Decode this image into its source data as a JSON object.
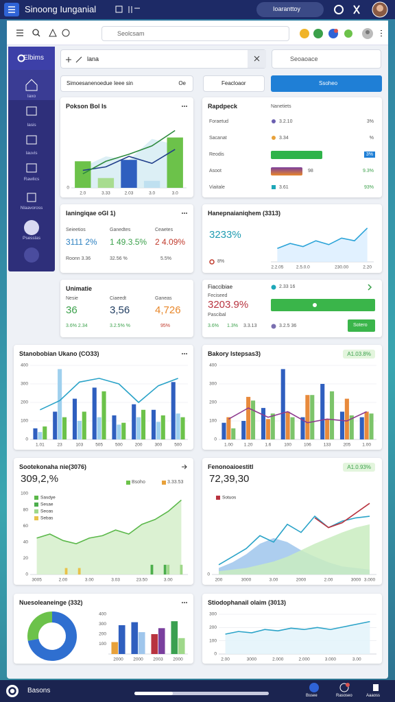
{
  "app_bar": {
    "title": "Sinoong Iunganial",
    "badge": "Ioaranttoy"
  },
  "toolbar": {
    "search_placeholder": "Seolcsam"
  },
  "sidebar": {
    "brand": "Elbims",
    "items": [
      "Iaxo",
      "Iasis",
      "Iauvis",
      "Rawlics",
      "Nlaavoross",
      "Psesslas"
    ]
  },
  "filters": {
    "field": "lana",
    "search_placeholder": "Seoaoace",
    "caption": "Simoesanenoedue Ieee sin",
    "caption_tag": "Oe",
    "dropdown": "Feacloaor",
    "button": "Ssoheo"
  },
  "cards": [
    {
      "title": "Pokson Bol Is",
      "chart": {
        "type": "bar",
        "categories": [
          "2.0",
          "3.33",
          "2.03",
          "3.0",
          "3.0"
        ],
        "ylim": [
          0,
          100
        ],
        "yticks": [
          0
        ],
        "series": [
          {
            "kind": "area",
            "color": "#d6ecf3",
            "values": [
              30,
              45,
              40,
              70,
              62
            ]
          },
          {
            "kind": "bar",
            "colors": [
              "#6cc24a",
              "#a8dc8f",
              "#2f5fbf",
              "#bfe0f0",
              "#6cc24a"
            ],
            "values": [
              38,
              14,
              40,
              10,
              72
            ]
          },
          {
            "kind": "line",
            "color": "#1f3d8a",
            "values": [
              25,
              30,
              45,
              35,
              55
            ]
          },
          {
            "kind": "line",
            "color": "#2d8a3e",
            "values": [
              20,
              38,
              48,
              60,
              82
            ]
          }
        ]
      }
    },
    {
      "title": "Rapdpeck",
      "subtitle": "Nanetiets",
      "rows": [
        {
          "label": "Foraetud",
          "value": "3.2.10",
          "change": "3%"
        },
        {
          "label": "Sacanat",
          "value": "3.34",
          "change": "%"
        },
        {
          "label": "Reodis",
          "progress": 58,
          "change": "3%"
        },
        {
          "label": "Asoot",
          "progress": 35,
          "value": "98",
          "change": "9.3%"
        },
        {
          "label": "Viaitale",
          "value": "3.61",
          "change": "93%"
        }
      ]
    },
    {
      "title": "Ianingiqae oGI 1)",
      "stats": [
        {
          "label": "Seieetios",
          "value": "3111 2%",
          "foot": "Roonn 3.36",
          "color": "#2a7fc0"
        },
        {
          "label": "Ganedtes",
          "value": "1 49.3.5%",
          "foot": "32.56 %",
          "color": "#3aa04a"
        },
        {
          "label": "Ceaetes",
          "value": "2 4.09%",
          "foot": "5.5%",
          "color": "#c0392b"
        }
      ]
    },
    {
      "title": "Unimatie",
      "stats": [
        {
          "label": "Nesie",
          "value": "36",
          "foot": "3.6% 2.34",
          "color": "#3aa04a"
        },
        {
          "label": "Ciaeedt",
          "value": "3,56",
          "foot": "3.2.5% %",
          "color": "#1d3a5f"
        },
        {
          "label": "Ganeas",
          "value": "4,726",
          "foot": "95%",
          "color": "#e8872a"
        }
      ]
    },
    {
      "title": "Hanepnaianiqhem (3313)",
      "value": "3233%",
      "change": "8%",
      "chart": {
        "type": "line",
        "categories": [
          "2.2.05",
          null,
          "2.5.0.0",
          null,
          null,
          "230.00",
          null,
          "2.20"
        ],
        "ylim": [
          0,
          100
        ],
        "series": [
          {
            "kind": "line",
            "color": "#2aa3d8",
            "fill": "#dcefff",
            "values": [
              35,
              48,
              40,
              55,
              45,
              62,
              55,
              88
            ]
          }
        ]
      }
    },
    {
      "label": "Fiaccibiae",
      "value": "2.33 16",
      "sub": "Feciseed",
      "big": "3203.9%",
      "foot": "Pascibal",
      "stats": [
        "3.6%",
        "1.3%",
        "3.3.13"
      ],
      "extra": "3.2.5 36",
      "button": "Sotero"
    },
    {
      "title": "Stanobobian Ukano (CO33)",
      "chart": {
        "type": "bar",
        "categories": [
          "1.01",
          "23",
          "103",
          "505",
          "500",
          "200",
          "300",
          "500"
        ],
        "ylim": [
          0,
          400
        ],
        "yticks": [
          0,
          100,
          200,
          300,
          400
        ],
        "grid": true,
        "series": [
          {
            "color": "#2f5fbf",
            "values": [
              60,
              150,
              220,
              280,
              130,
              190,
              160,
              310
            ]
          },
          {
            "color": "#9fd0ee",
            "values": [
              40,
              380,
              100,
              120,
              80,
              120,
              95,
              140
            ]
          },
          {
            "color": "#6cc24a",
            "values": [
              70,
              120,
              150,
              260,
              90,
              160,
              130,
              120
            ]
          },
          {
            "kind": "line",
            "color": "#2aa3c8",
            "values": [
              160,
              210,
              310,
              330,
              300,
              200,
              290,
              330
            ]
          }
        ]
      }
    },
    {
      "title": "Bakory Istepsas3)",
      "badge": "A1.03.8%",
      "chart": {
        "type": "bar",
        "categories": [
          "1.00",
          "1.20",
          "1.6",
          "100",
          "106",
          "133",
          "205",
          "1.00"
        ],
        "ylim": [
          0,
          400
        ],
        "yticks": [
          0,
          100,
          200,
          300,
          400
        ],
        "grid": true,
        "series": [
          {
            "color": "#2f5fbf",
            "values": [
              90,
              100,
              170,
              380,
              120,
              300,
              150,
              120
            ]
          },
          {
            "color": "#e88a3c",
            "values": [
              120,
              230,
              110,
              150,
              240,
              110,
              220,
              150
            ]
          },
          {
            "color": "#7cc46a",
            "values": [
              60,
              210,
              140,
              120,
              240,
              260,
              130,
              140
            ]
          },
          {
            "kind": "line",
            "color": "#8e3b8f",
            "values": [
              110,
              170,
              120,
              150,
              90,
              110,
              100,
              150
            ]
          }
        ]
      }
    },
    {
      "title": "Sootekonaha nie(3076)",
      "value": "309,2,%",
      "chips": [
        "Bsoho",
        "3.33.53"
      ],
      "chart": {
        "type": "line",
        "categories": [
          "3005",
          null,
          "2.00",
          null,
          "3.00",
          null,
          "3.03",
          null,
          "23.50",
          null,
          "3.00",
          null
        ],
        "ylim": [
          0,
          100
        ],
        "yticks": [
          0,
          20,
          40,
          60,
          80,
          100
        ],
        "series": [
          {
            "name": "Sasdye",
            "kind": "line",
            "color": "#5bb84a",
            "fill": "#d5efca",
            "values": [
              45,
              50,
              42,
              38,
              45,
              48,
              55,
              50,
              62,
              68,
              78,
              92
            ]
          },
          {
            "name": "Sesae",
            "kind": "bar",
            "color": "#4cae4c",
            "values": [
              0,
              0,
              0,
              0,
              0,
              0,
              0,
              0,
              0,
              12,
              12,
              0
            ]
          },
          {
            "name": "Seoas",
            "kind": "bar",
            "color": "#9fd88a",
            "values": [
              0,
              0,
              0,
              0,
              0,
              0,
              0,
              0,
              0,
              0,
              12,
              12
            ]
          },
          {
            "name": "Sebas",
            "kind": "bar",
            "color": "#e8c24a",
            "values": [
              0,
              0,
              8,
              8,
              0,
              0,
              0,
              0,
              0,
              0,
              0,
              0
            ]
          }
        ]
      }
    },
    {
      "title": "Fenonoaioestitl",
      "badge": "A1.0.93%",
      "value": "72,39,30",
      "chart": {
        "type": "line",
        "categories": [
          "200",
          null,
          "3000",
          null,
          "3.00",
          null,
          "2000",
          null,
          "2.00",
          null,
          "3000",
          "3.000"
        ],
        "ylim": [
          0,
          100
        ],
        "yticks": [
          0
        ],
        "series": [
          {
            "kind": "area",
            "color": "#9fc6ec",
            "values": [
              8,
              15,
              25,
              38,
              45,
              40,
              30,
              22,
              15,
              10,
              8,
              6
            ]
          },
          {
            "kind": "area",
            "color": "#c9ecc0",
            "values": [
              4,
              6,
              8,
              12,
              16,
              22,
              30,
              38,
              45,
              52,
              58,
              62
            ]
          },
          {
            "kind": "line",
            "color": "#2aa3c8",
            "values": [
              12,
              22,
              32,
              48,
              40,
              62,
              52,
              72,
              58,
              66,
              70,
              72
            ]
          },
          {
            "name": "Sotuos",
            "kind": "line",
            "color": "#b8333f",
            "values": [
              null,
              null,
              null,
              null,
              null,
              null,
              null,
              70,
              58,
              64,
              76,
              88
            ]
          }
        ]
      }
    },
    {
      "title": "Nuesoleaneinge (332)",
      "donut": {
        "type": "pie",
        "values": [
          72,
          28
        ],
        "colors": [
          "#2f6fd0",
          "#6cc24a"
        ]
      },
      "chart": {
        "type": "bar",
        "categories": [
          "2000",
          "2000",
          "2003",
          "2000"
        ],
        "ylim": [
          0,
          400
        ],
        "yticks": [
          100,
          200,
          300,
          400
        ],
        "series": [
          {
            "colors": [
              "#e8a13a",
              "#2f5fbf",
              "#b8333f",
              "#3aa050"
            ],
            "values": [
              120,
              320,
              200,
              330
            ]
          },
          {
            "colors": [
              "#2f5fbf",
              "#9fc6ec",
              "#7a3f9e",
              "#9fd88a"
            ],
            "values": [
              290,
              220,
              260,
              160
            ]
          }
        ]
      }
    },
    {
      "title": "Stiodophanail olaim (3013)",
      "chart": {
        "type": "line",
        "categories": [
          "2.00",
          null,
          "3000",
          null,
          "2.000",
          null,
          "2.000",
          null,
          "3.000",
          null,
          "3.00",
          null
        ],
        "ylim": [
          0,
          300
        ],
        "yticks": [
          0,
          100,
          200,
          300
        ],
        "grid": true,
        "series": [
          {
            "kind": "line",
            "color": "#2aa3c8",
            "fill": "#e3f3fa",
            "values": [
              150,
              170,
              160,
              185,
              175,
              195,
              185,
              200,
              185,
              205,
              225,
              245
            ]
          }
        ]
      }
    }
  ],
  "bottom_bar": {
    "brand": "Basons",
    "items": [
      "Bssee",
      "Rasoseo",
      "Aaaoss"
    ]
  }
}
